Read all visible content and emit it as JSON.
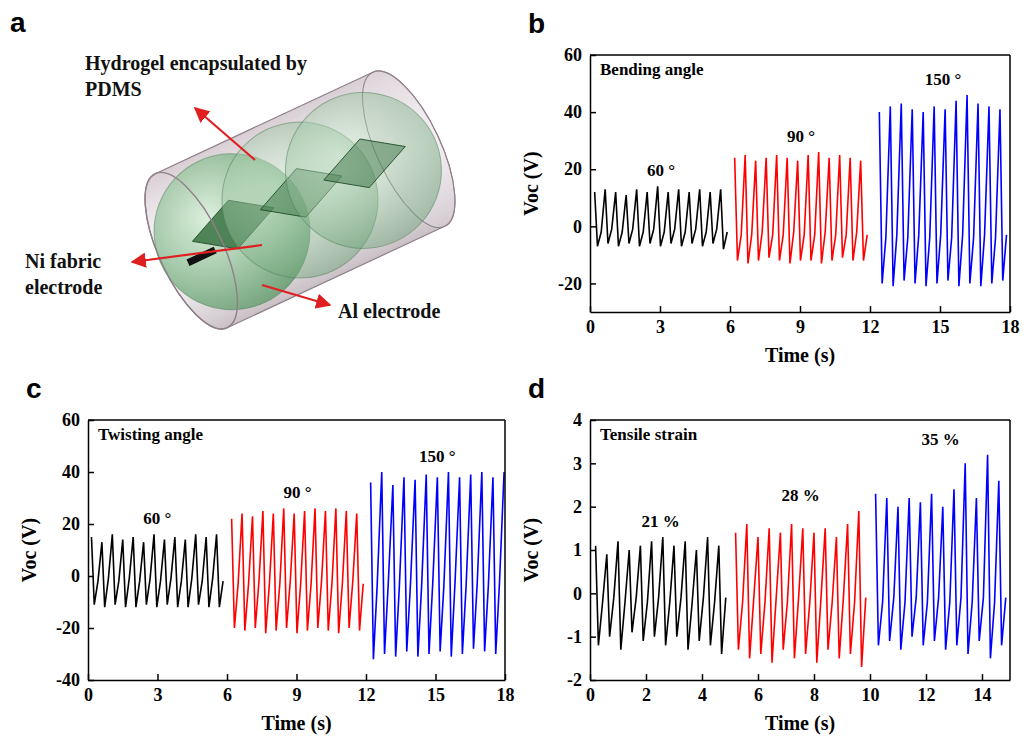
{
  "diagram": {
    "panel_label": "a",
    "labels": {
      "hydrogel": "Hydrogel encapsulated by PDMS",
      "ni": "Ni fabric electrode",
      "al": "Al electrode"
    }
  },
  "chart_data": [
    {
      "type": "line",
      "panel_label": "b",
      "title": "Bending angle",
      "x_label": "Time (s)",
      "y_label": "Voc (V)",
      "xlim": [
        0,
        18
      ],
      "xticks": [
        0,
        3,
        6,
        9,
        12,
        15,
        18
      ],
      "ylim": [
        -30,
        60
      ],
      "yticks": [
        -20,
        0,
        20,
        40,
        60
      ],
      "series": [
        {
          "name": "60 °",
          "color": "#000000",
          "x": [
            0.2,
            0.32,
            0.48,
            0.65,
            0.77,
            0.93,
            1.1,
            1.22,
            1.38,
            1.55,
            1.67,
            1.83,
            2.0,
            2.12,
            2.28,
            2.45,
            2.57,
            2.73,
            2.9,
            3.02,
            3.18,
            3.35,
            3.47,
            3.63,
            3.8,
            3.92,
            4.08,
            4.25,
            4.37,
            4.53,
            4.7,
            4.82,
            4.98,
            5.15,
            5.27,
            5.43,
            5.6,
            5.72,
            5.88
          ],
          "values": [
            12,
            -7,
            -2,
            13,
            -6,
            -1,
            12,
            -7,
            -2,
            11,
            -6,
            -1,
            13,
            -7,
            -2,
            12,
            -6,
            -1,
            14,
            -7,
            -2,
            12,
            -6,
            -1,
            13,
            -7,
            -2,
            12,
            -6,
            -1,
            13,
            -7,
            -2,
            12,
            -6,
            -1,
            13,
            -8,
            -2
          ]
        },
        {
          "name": "90 °",
          "color": "#ff0000",
          "x": [
            6.2,
            6.32,
            6.48,
            6.65,
            6.77,
            6.93,
            7.1,
            7.22,
            7.38,
            7.55,
            7.67,
            7.83,
            8.0,
            8.12,
            8.28,
            8.45,
            8.57,
            8.73,
            8.9,
            9.02,
            9.18,
            9.35,
            9.47,
            9.63,
            9.8,
            9.92,
            10.08,
            10.25,
            10.37,
            10.53,
            10.7,
            10.82,
            10.98,
            11.15,
            11.27,
            11.43,
            11.6,
            11.72,
            11.88
          ],
          "values": [
            24,
            -12,
            -3,
            25,
            -13,
            -3,
            23,
            -12,
            -2,
            24,
            -11,
            -3,
            25,
            -12,
            -3,
            24,
            -13,
            -2,
            23,
            -12,
            -3,
            25,
            -12,
            -3,
            26,
            -13,
            -2,
            24,
            -12,
            -3,
            25,
            -11,
            -3,
            24,
            -12,
            -2,
            23,
            -12,
            -3
          ]
        },
        {
          "name": "150 °",
          "color": "#0000ff",
          "x": [
            12.4,
            12.52,
            12.68,
            12.87,
            12.99,
            13.15,
            13.34,
            13.46,
            13.62,
            13.81,
            13.93,
            14.09,
            14.28,
            14.4,
            14.56,
            14.75,
            14.87,
            15.03,
            15.22,
            15.34,
            15.5,
            15.69,
            15.81,
            15.97,
            16.16,
            16.28,
            16.44,
            16.63,
            16.75,
            16.91,
            17.1,
            17.22,
            17.38,
            17.57,
            17.69,
            17.85
          ],
          "values": [
            40,
            -20,
            -4,
            42,
            -21,
            -3,
            43,
            -19,
            -4,
            41,
            -20,
            -3,
            40,
            -21,
            -4,
            42,
            -20,
            -3,
            41,
            -19,
            -4,
            44,
            -21,
            -3,
            46,
            -20,
            -4,
            43,
            -21,
            -3,
            42,
            -20,
            -4,
            41,
            -19,
            -3
          ]
        }
      ]
    },
    {
      "type": "line",
      "panel_label": "c",
      "title": "Twisting angle",
      "x_label": "Time (s)",
      "y_label": "Voc (V)",
      "xlim": [
        0,
        18
      ],
      "xticks": [
        0,
        3,
        6,
        9,
        12,
        15,
        18
      ],
      "ylim": [
        -40,
        60
      ],
      "yticks": [
        -40,
        -20,
        0,
        20,
        40,
        60
      ],
      "series": [
        {
          "name": "60 °",
          "color": "#000000",
          "x": [
            0.15,
            0.27,
            0.43,
            0.6,
            0.72,
            0.88,
            1.05,
            1.17,
            1.33,
            1.5,
            1.62,
            1.78,
            1.95,
            2.07,
            2.23,
            2.4,
            2.52,
            2.68,
            2.85,
            2.97,
            3.13,
            3.3,
            3.42,
            3.58,
            3.75,
            3.87,
            4.03,
            4.2,
            4.32,
            4.48,
            4.65,
            4.77,
            4.93,
            5.1,
            5.22,
            5.38,
            5.55,
            5.67,
            5.83
          ],
          "values": [
            15,
            -11,
            -2,
            13,
            -12,
            -1,
            16,
            -11,
            -2,
            14,
            -12,
            -1,
            15,
            -12,
            -2,
            13,
            -11,
            -1,
            16,
            -12,
            -2,
            14,
            -11,
            -1,
            15,
            -12,
            -2,
            14,
            -12,
            -1,
            16,
            -11,
            -2,
            15,
            -12,
            -1,
            16,
            -12,
            -2
          ]
        },
        {
          "name": "90 °",
          "color": "#ff0000",
          "x": [
            6.2,
            6.32,
            6.48,
            6.65,
            6.77,
            6.93,
            7.1,
            7.22,
            7.38,
            7.55,
            7.67,
            7.83,
            8.0,
            8.12,
            8.28,
            8.45,
            8.57,
            8.73,
            8.9,
            9.02,
            9.18,
            9.35,
            9.47,
            9.63,
            9.8,
            9.92,
            10.08,
            10.25,
            10.37,
            10.53,
            10.7,
            10.82,
            10.98,
            11.15,
            11.27,
            11.43,
            11.6,
            11.72,
            11.88
          ],
          "values": [
            22,
            -20,
            -3,
            24,
            -21,
            -3,
            23,
            -20,
            -2,
            25,
            -22,
            -3,
            24,
            -21,
            -3,
            26,
            -20,
            -2,
            24,
            -22,
            -3,
            25,
            -21,
            -3,
            26,
            -20,
            -2,
            25,
            -21,
            -3,
            26,
            -22,
            -3,
            25,
            -20,
            -2,
            24,
            -21,
            -3
          ]
        },
        {
          "name": "150 °",
          "color": "#0000ff",
          "x": [
            12.2,
            12.32,
            12.48,
            12.68,
            12.8,
            12.96,
            13.16,
            13.28,
            13.44,
            13.64,
            13.76,
            13.92,
            14.12,
            14.24,
            14.4,
            14.6,
            14.72,
            14.88,
            15.08,
            15.2,
            15.36,
            15.56,
            15.68,
            15.84,
            16.04,
            16.16,
            16.32,
            16.52,
            16.64,
            16.8,
            17.0,
            17.12,
            17.28,
            17.48,
            17.6,
            17.76,
            17.96
          ],
          "values": [
            36,
            -32,
            -4,
            40,
            -30,
            -3,
            35,
            -31,
            -4,
            38,
            -29,
            -3,
            37,
            -31,
            -4,
            39,
            -30,
            -3,
            38,
            -29,
            -4,
            40,
            -31,
            -3,
            38,
            -30,
            -4,
            39,
            -28,
            -3,
            40,
            -29,
            -4,
            38,
            -30,
            -3,
            40
          ]
        }
      ]
    },
    {
      "type": "line",
      "panel_label": "d",
      "title": "Tensile strain",
      "x_label": "Time (s)",
      "y_label": "Voc (V)",
      "xlim": [
        0,
        15
      ],
      "xticks": [
        0,
        2,
        4,
        6,
        8,
        10,
        12,
        14
      ],
      "ylim": [
        -2,
        4
      ],
      "yticks": [
        -2,
        -1,
        0,
        1,
        2,
        3,
        4
      ],
      "series": [
        {
          "name": "21 %",
          "color": "#000000",
          "x": [
            0.2,
            0.3,
            0.45,
            0.6,
            0.7,
            0.85,
            1.0,
            1.1,
            1.25,
            1.4,
            1.5,
            1.65,
            1.8,
            1.9,
            2.05,
            2.2,
            2.3,
            2.45,
            2.6,
            2.7,
            2.85,
            3.0,
            3.1,
            3.25,
            3.4,
            3.5,
            3.65,
            3.8,
            3.9,
            4.05,
            4.2,
            4.3,
            4.45,
            4.6,
            4.7,
            4.85
          ],
          "values": [
            1.1,
            -1.2,
            -0.2,
            0.9,
            -1.0,
            -0.1,
            1.2,
            -1.3,
            -0.2,
            1.0,
            -0.9,
            -0.1,
            1.1,
            -1.1,
            -0.2,
            1.2,
            -1.0,
            -0.1,
            1.3,
            -1.2,
            -0.2,
            1.1,
            -1.0,
            -0.1,
            1.2,
            -1.3,
            -0.2,
            1.0,
            -1.1,
            -0.1,
            1.3,
            -1.2,
            -0.2,
            1.1,
            -1.4,
            -0.1
          ]
        },
        {
          "name": "28 %",
          "color": "#ff0000",
          "x": [
            5.2,
            5.3,
            5.45,
            5.6,
            5.7,
            5.85,
            6.0,
            6.1,
            6.25,
            6.4,
            6.5,
            6.65,
            6.8,
            6.9,
            7.05,
            7.2,
            7.3,
            7.45,
            7.6,
            7.7,
            7.85,
            8.0,
            8.1,
            8.25,
            8.4,
            8.5,
            8.65,
            8.8,
            8.9,
            9.05,
            9.2,
            9.3,
            9.45,
            9.6,
            9.7,
            9.85
          ],
          "values": [
            1.4,
            -1.3,
            -0.2,
            1.6,
            -1.5,
            -0.1,
            1.3,
            -1.4,
            -0.2,
            1.5,
            -1.6,
            -0.1,
            1.4,
            -1.3,
            -0.2,
            1.6,
            -1.5,
            -0.1,
            1.5,
            -1.4,
            -0.2,
            1.4,
            -1.6,
            -0.1,
            1.5,
            -1.3,
            -0.2,
            1.3,
            -1.5,
            -0.1,
            1.6,
            -1.4,
            -0.2,
            1.9,
            -1.7,
            -0.1
          ]
        },
        {
          "name": "35 %",
          "color": "#0000ff",
          "x": [
            10.2,
            10.3,
            10.45,
            10.6,
            10.7,
            10.85,
            11.0,
            11.1,
            11.25,
            11.4,
            11.5,
            11.65,
            11.8,
            11.9,
            12.05,
            12.2,
            12.3,
            12.45,
            12.6,
            12.7,
            12.85,
            13.0,
            13.1,
            13.25,
            13.4,
            13.5,
            13.65,
            13.8,
            13.9,
            14.05,
            14.2,
            14.3,
            14.45,
            14.6,
            14.7,
            14.85
          ],
          "values": [
            2.3,
            -1.2,
            -0.2,
            2.2,
            -1.1,
            -0.1,
            2.0,
            -1.3,
            -0.2,
            2.2,
            -1.0,
            -0.1,
            2.1,
            -1.2,
            -0.2,
            2.3,
            -1.1,
            -0.1,
            2.0,
            -1.3,
            -0.2,
            2.4,
            -1.2,
            -0.1,
            3.0,
            -1.4,
            -0.2,
            2.2,
            -1.1,
            -0.1,
            3.2,
            -1.5,
            -0.2,
            2.6,
            -1.2,
            -0.1
          ]
        }
      ]
    }
  ]
}
